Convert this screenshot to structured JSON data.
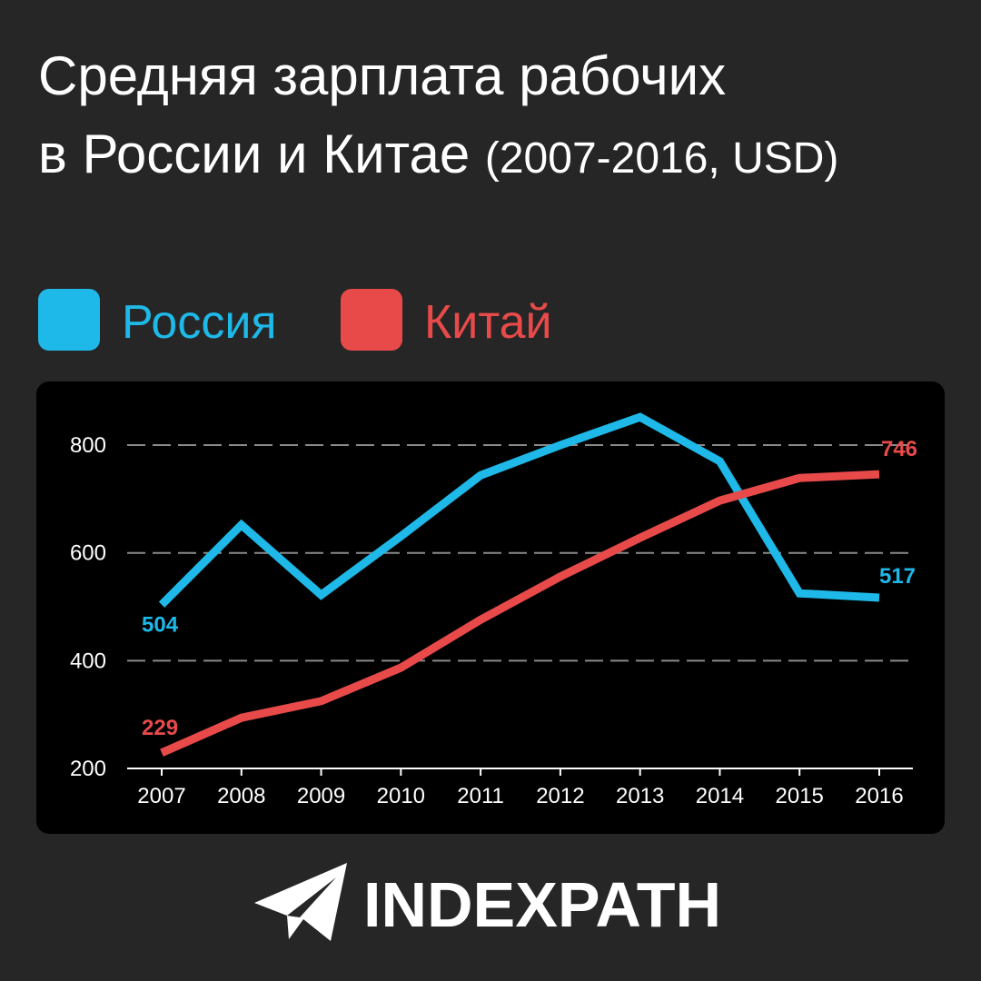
{
  "chart_data": {
    "type": "line",
    "title": [
      "Средняя зарплата рабочих",
      "в России и Китае"
    ],
    "subtitle": "(2007-2016, USD)",
    "categories": [
      "2007",
      "2008",
      "2009",
      "2010",
      "2011",
      "2012",
      "2013",
      "2014",
      "2015",
      "2016"
    ],
    "series": [
      {
        "name": "Россия",
        "color": "#1eb9e8",
        "values": [
          504,
          652,
          522,
          631,
          744,
          800,
          852,
          770,
          525,
          517
        ]
      },
      {
        "name": "Китай",
        "color": "#e84a4a",
        "values": [
          229,
          294,
          325,
          387,
          476,
          556,
          628,
          697,
          739,
          746
        ]
      }
    ],
    "ylim": [
      200,
      880
    ],
    "yticks": [
      200,
      400,
      600,
      800
    ],
    "grid": true,
    "brand": "INDEXPATH"
  }
}
